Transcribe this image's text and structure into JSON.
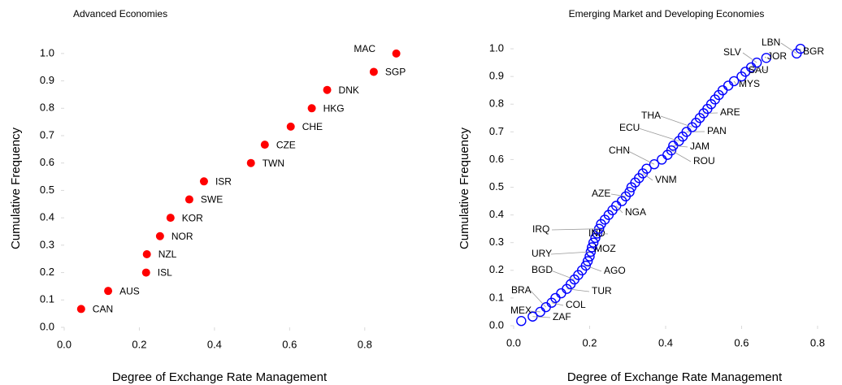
{
  "chart_data": [
    {
      "type": "scatter",
      "title": "Advanced Economies",
      "x_label": "Degree of Exchange Rate Management",
      "y_label": "Cumulative Frequency",
      "color": "#ff0000",
      "marker_fill": true,
      "xlim": [
        0,
        0.9
      ],
      "ylim": [
        0,
        1.05
      ],
      "xticks": [
        {
          "value": 0,
          "label": "0.0"
        },
        0.2,
        0.4,
        0.6,
        0.8
      ],
      "yticks": [
        {
          "value": 0,
          "label": "0.0"
        },
        0.1,
        0.2,
        0.3,
        0.4,
        0.5,
        0.6,
        0.7,
        0.8,
        0.9,
        {
          "value": 1,
          "label": "1.0"
        }
      ],
      "labels": [
        "CAN",
        "AUS",
        "ISL",
        "NZL",
        "NOR",
        "KOR",
        "SWE",
        "ISR",
        "TWN",
        "CZE",
        "CHE",
        "HKG",
        "DNK",
        "SGP",
        "MAC"
      ],
      "x": [
        0.045,
        0.117,
        0.218,
        0.22,
        0.255,
        0.283,
        0.333,
        0.372,
        0.497,
        0.534,
        0.603,
        0.659,
        0.7,
        0.824,
        0.884
      ],
      "y": [
        0.067,
        0.133,
        0.2,
        0.267,
        0.333,
        0.4,
        0.467,
        0.533,
        0.6,
        0.667,
        0.733,
        0.8,
        0.867,
        0.933,
        1.0
      ]
    },
    {
      "type": "scatter",
      "title": "Emerging Market and Developing Economies",
      "x_label": "Degree of Exchange Rate Management",
      "y_label": "Cumulative Frequency",
      "color": "#0000ff",
      "marker_fill": false,
      "xlim": [
        0,
        0.86
      ],
      "ylim": [
        0,
        1.05
      ],
      "xticks": [
        {
          "value": 0,
          "label": "0.0"
        },
        0.2,
        0.4,
        0.6,
        0.8
      ],
      "yticks": [
        {
          "value": 0,
          "label": "0.0"
        },
        0.1,
        0.2,
        0.3,
        0.4,
        0.5,
        0.6,
        0.7,
        0.8,
        0.9,
        {
          "value": 1,
          "label": "1.0"
        }
      ],
      "labels": [
        null,
        "ZAF",
        "MEX",
        "BRA",
        "COL",
        null,
        null,
        "TUR",
        null,
        "BGD",
        null,
        null,
        "AGO",
        null,
        null,
        "URY",
        "MOZ",
        null,
        null,
        "IND",
        "IRQ",
        null,
        null,
        null,
        null,
        "NGA",
        null,
        "AZE",
        null,
        null,
        null,
        null,
        "VNM",
        null,
        "CHN",
        null,
        null,
        "ROU",
        "JAM",
        "ECU",
        null,
        "PAN",
        "THA",
        null,
        null,
        "ARE",
        null,
        null,
        null,
        null,
        null,
        null,
        "MYS",
        null,
        null,
        "SAU",
        "SLV",
        "JOR",
        "LBN",
        "BGR"
      ],
      "x": [
        0.02,
        0.05,
        0.07,
        0.085,
        0.1,
        0.11,
        0.125,
        0.14,
        0.15,
        0.16,
        0.17,
        0.18,
        0.19,
        0.195,
        0.2,
        0.203,
        0.206,
        0.21,
        0.215,
        0.22,
        0.225,
        0.23,
        0.24,
        0.25,
        0.26,
        0.27,
        0.285,
        0.295,
        0.305,
        0.31,
        0.32,
        0.33,
        0.34,
        0.35,
        0.37,
        0.39,
        0.405,
        0.415,
        0.42,
        0.435,
        0.445,
        0.455,
        0.47,
        0.48,
        0.49,
        0.5,
        0.51,
        0.52,
        0.53,
        0.54,
        0.55,
        0.565,
        0.58,
        0.6,
        0.61,
        0.625,
        0.64,
        0.665,
        0.745,
        0.755
      ],
      "y": [
        0.017,
        0.033,
        0.05,
        0.067,
        0.083,
        0.1,
        0.117,
        0.133,
        0.15,
        0.167,
        0.183,
        0.2,
        0.217,
        0.233,
        0.25,
        0.267,
        0.283,
        0.3,
        0.317,
        0.333,
        0.35,
        0.367,
        0.383,
        0.4,
        0.417,
        0.433,
        0.45,
        0.467,
        0.483,
        0.5,
        0.517,
        0.533,
        0.55,
        0.567,
        0.583,
        0.6,
        0.617,
        0.633,
        0.65,
        0.667,
        0.683,
        0.7,
        0.717,
        0.733,
        0.75,
        0.767,
        0.783,
        0.8,
        0.817,
        0.833,
        0.85,
        0.867,
        0.883,
        0.9,
        0.917,
        0.933,
        0.95,
        0.967,
        0.983,
        1.0
      ]
    }
  ]
}
